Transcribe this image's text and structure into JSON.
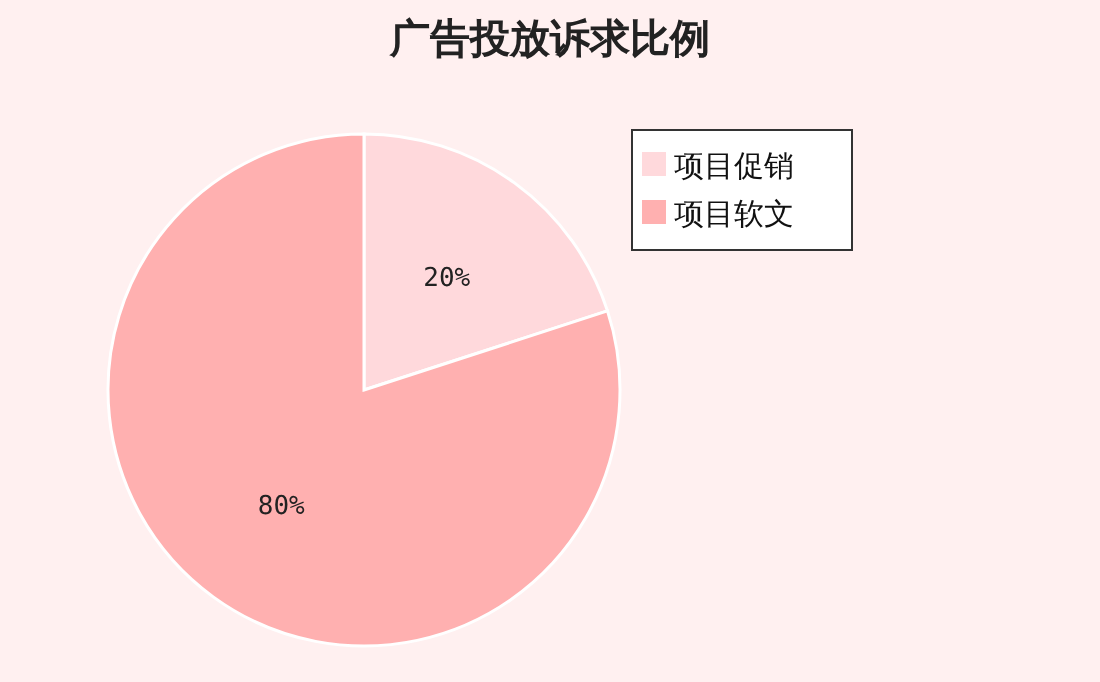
{
  "chart_data": {
    "type": "pie",
    "title": "广告投放诉求比例",
    "categories": [
      "项目促销",
      "项目软文"
    ],
    "values": [
      20,
      80
    ],
    "colors": [
      "#ffd9dc",
      "#ffb0b0"
    ],
    "value_labels": [
      "20%",
      "80%"
    ],
    "legend": "top right"
  }
}
